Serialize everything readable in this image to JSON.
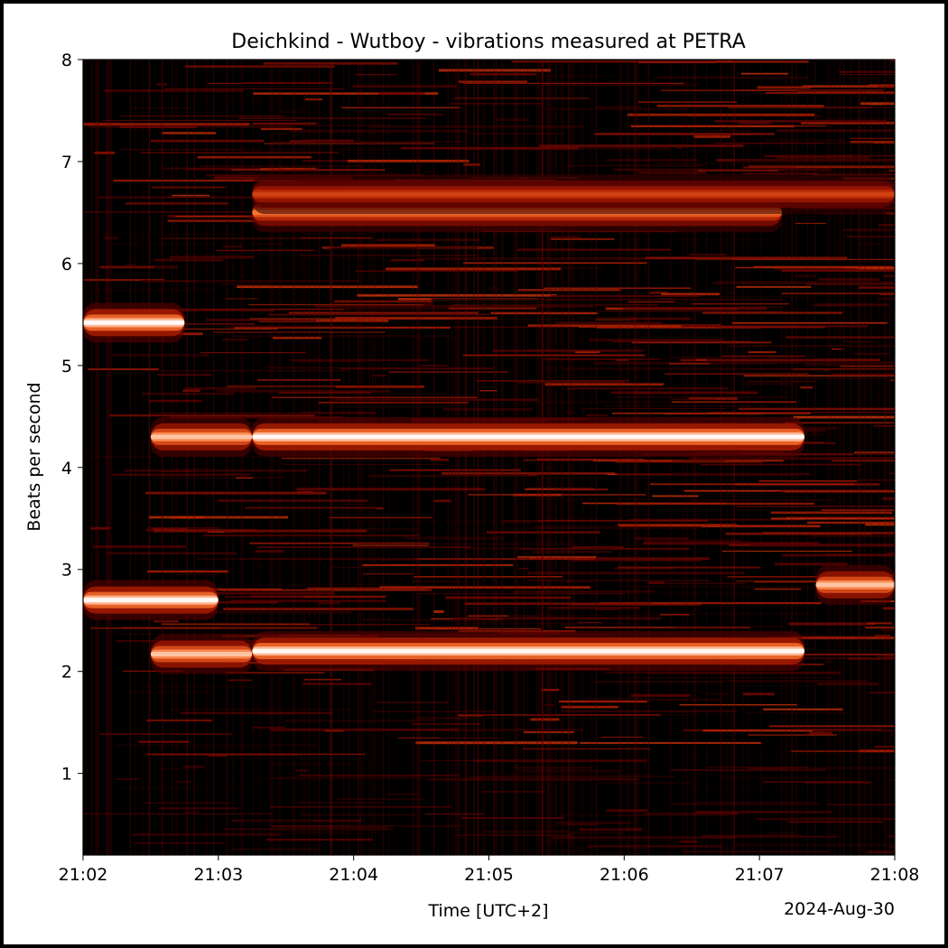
{
  "chart_data": {
    "type": "heatmap",
    "title": "Deichkind - Wutboy - vibrations measured at PETRA",
    "xlabel": "Time [UTC+2]",
    "ylabel": "Beats per second",
    "date_label": "2024-Aug-30",
    "x_ticks": [
      "21:02",
      "21:03",
      "21:04",
      "21:05",
      "21:06",
      "21:07",
      "21:08"
    ],
    "y_ticks": [
      1,
      2,
      3,
      4,
      5,
      6,
      7,
      8
    ],
    "xlim": [
      "21:02",
      "21:08"
    ],
    "ylim": [
      0.2,
      8
    ],
    "colormap": [
      "#000000",
      "#5a0000",
      "#b32000",
      "#ff7a33",
      "#ffffff"
    ],
    "bands": [
      {
        "t0": "21:02:00",
        "t1": "21:02:45",
        "f": 5.42,
        "intensity": 1.0
      },
      {
        "t0": "21:02:00",
        "t1": "21:03:00",
        "f": 2.7,
        "intensity": 1.0
      },
      {
        "t0": "21:02:30",
        "t1": "21:03:15",
        "f": 4.3,
        "intensity": 0.9
      },
      {
        "t0": "21:02:30",
        "t1": "21:03:15",
        "f": 2.17,
        "intensity": 0.9
      },
      {
        "t0": "21:03:15",
        "t1": "21:07:20",
        "f": 4.3,
        "intensity": 1.0
      },
      {
        "t0": "21:03:15",
        "t1": "21:07:20",
        "f": 2.2,
        "intensity": 1.0
      },
      {
        "t0": "21:03:15",
        "t1": "21:07:10",
        "f": 6.5,
        "intensity": 0.75
      },
      {
        "t0": "21:03:15",
        "t1": "21:08:00",
        "f": 6.68,
        "intensity": 0.6
      },
      {
        "t0": "21:07:25",
        "t1": "21:08:00",
        "f": 2.85,
        "intensity": 0.9
      }
    ]
  }
}
